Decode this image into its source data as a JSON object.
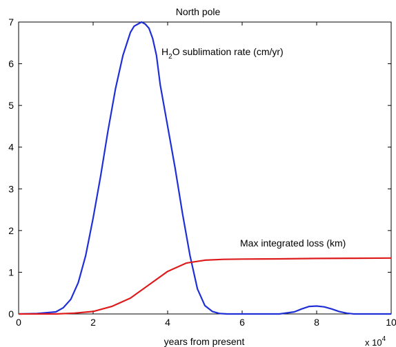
{
  "chart_data": {
    "type": "line",
    "title": "North pole",
    "xlabel": "years from present",
    "x_exponent_label": {
      "base": "x 10",
      "exp": "4"
    },
    "xlim": [
      0,
      10
    ],
    "ylim": [
      0,
      7
    ],
    "xticks": [
      0,
      2,
      4,
      6,
      8,
      10
    ],
    "yticks": [
      0,
      1,
      2,
      3,
      4,
      5,
      6,
      7
    ],
    "grid": false,
    "annotations": {
      "sublimation": {
        "pre": "H",
        "sub": "2",
        "post": "O sublimation rate (cm/yr)"
      },
      "loss": "Max integrated loss (km)"
    },
    "series": [
      {
        "color": "#1f2fd6",
        "x": [
          0,
          0.5,
          1.0,
          1.2,
          1.4,
          1.6,
          1.8,
          2.0,
          2.2,
          2.4,
          2.6,
          2.8,
          3.0,
          3.1,
          3.2,
          3.3,
          3.4,
          3.5,
          3.6,
          3.7,
          3.8,
          4.0,
          4.2,
          4.4,
          4.6,
          4.8,
          5.0,
          5.2,
          5.4,
          5.6,
          6.0,
          7.0,
          7.4,
          7.6,
          7.8,
          8.0,
          8.2,
          8.4,
          8.6,
          8.8,
          9.0,
          9.5,
          10.0
        ],
        "y": [
          0,
          0.01,
          0.05,
          0.15,
          0.35,
          0.75,
          1.4,
          2.3,
          3.3,
          4.4,
          5.4,
          6.2,
          6.75,
          6.9,
          6.95,
          7.0,
          6.95,
          6.85,
          6.6,
          6.2,
          5.5,
          4.5,
          3.5,
          2.4,
          1.4,
          0.6,
          0.2,
          0.06,
          0.01,
          0.0,
          0.0,
          0.0,
          0.05,
          0.12,
          0.18,
          0.19,
          0.17,
          0.12,
          0.06,
          0.02,
          0.0,
          0.0,
          0.0
        ]
      },
      {
        "color": "#dd1b1b",
        "x": [
          0,
          1.0,
          1.5,
          2.0,
          2.5,
          3.0,
          3.5,
          4.0,
          4.5,
          5.0,
          5.5,
          6.0,
          7.0,
          8.0,
          9.0,
          10.0
        ],
        "y": [
          0,
          0.0,
          0.02,
          0.06,
          0.18,
          0.38,
          0.7,
          1.02,
          1.22,
          1.29,
          1.31,
          1.315,
          1.32,
          1.33,
          1.335,
          1.34
        ]
      }
    ]
  }
}
